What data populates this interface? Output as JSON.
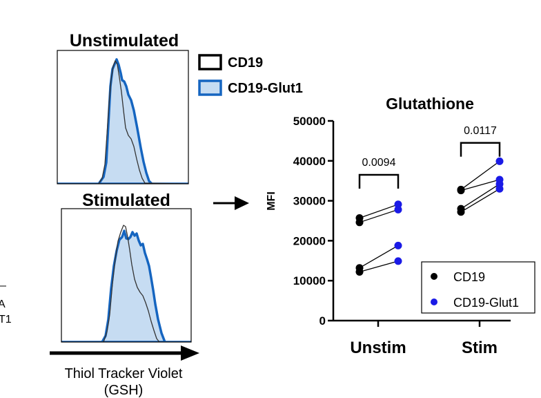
{
  "colors": {
    "cd19": "#000000",
    "glut1_edge": "#1565c0",
    "glut1_fill": "#c6dcf2",
    "glut1_dot": "#1a1ae6"
  },
  "left_panel": {
    "top_title": "Unstimulated",
    "bottom_title": "Stimulated",
    "legend": [
      {
        "label": "CD19",
        "style": "black-outline"
      },
      {
        "label": "CD19-Glut1",
        "style": "blue-fill"
      }
    ],
    "x_axis_label_line1": "Thiol Tracker Violet",
    "x_axis_label_line2": "(GSH)",
    "edge_fragments": [
      "A",
      "T1"
    ]
  },
  "chart_data": {
    "type": "scatter",
    "title": "Glutathione",
    "ylabel": "MFI",
    "xlabel": "",
    "ylim": [
      0,
      50000
    ],
    "yticks": [
      0,
      10000,
      20000,
      30000,
      40000,
      50000
    ],
    "ytick_labels": [
      "0",
      "10000",
      "20000",
      "30000",
      "40000",
      "50000"
    ],
    "categories": [
      "Unstim",
      "Stim"
    ],
    "series": [
      {
        "name": "CD19",
        "color": "#000000"
      },
      {
        "name": "CD19-Glut1",
        "color": "#1a1ae6"
      }
    ],
    "pairs": [
      {
        "group": "Unstim",
        "cd19": 25700,
        "glut1": 29100
      },
      {
        "group": "Unstim",
        "cd19": 24600,
        "glut1": 27800
      },
      {
        "group": "Unstim",
        "cd19": 13200,
        "glut1": 18800
      },
      {
        "group": "Unstim",
        "cd19": 12200,
        "glut1": 14900
      },
      {
        "group": "Stim",
        "cd19": 32800,
        "glut1": 39900
      },
      {
        "group": "Stim",
        "cd19": 32600,
        "glut1": 35300
      },
      {
        "group": "Stim",
        "cd19": 28000,
        "glut1": 34200
      },
      {
        "group": "Stim",
        "cd19": 27200,
        "glut1": 33000
      }
    ],
    "annotations": [
      {
        "group": "Unstim",
        "text": "0.0094",
        "bracket_y": 36500
      },
      {
        "group": "Stim",
        "text": "0.0117",
        "bracket_y": 44500
      }
    ],
    "legend_position": "bottom-right",
    "grid": false
  }
}
